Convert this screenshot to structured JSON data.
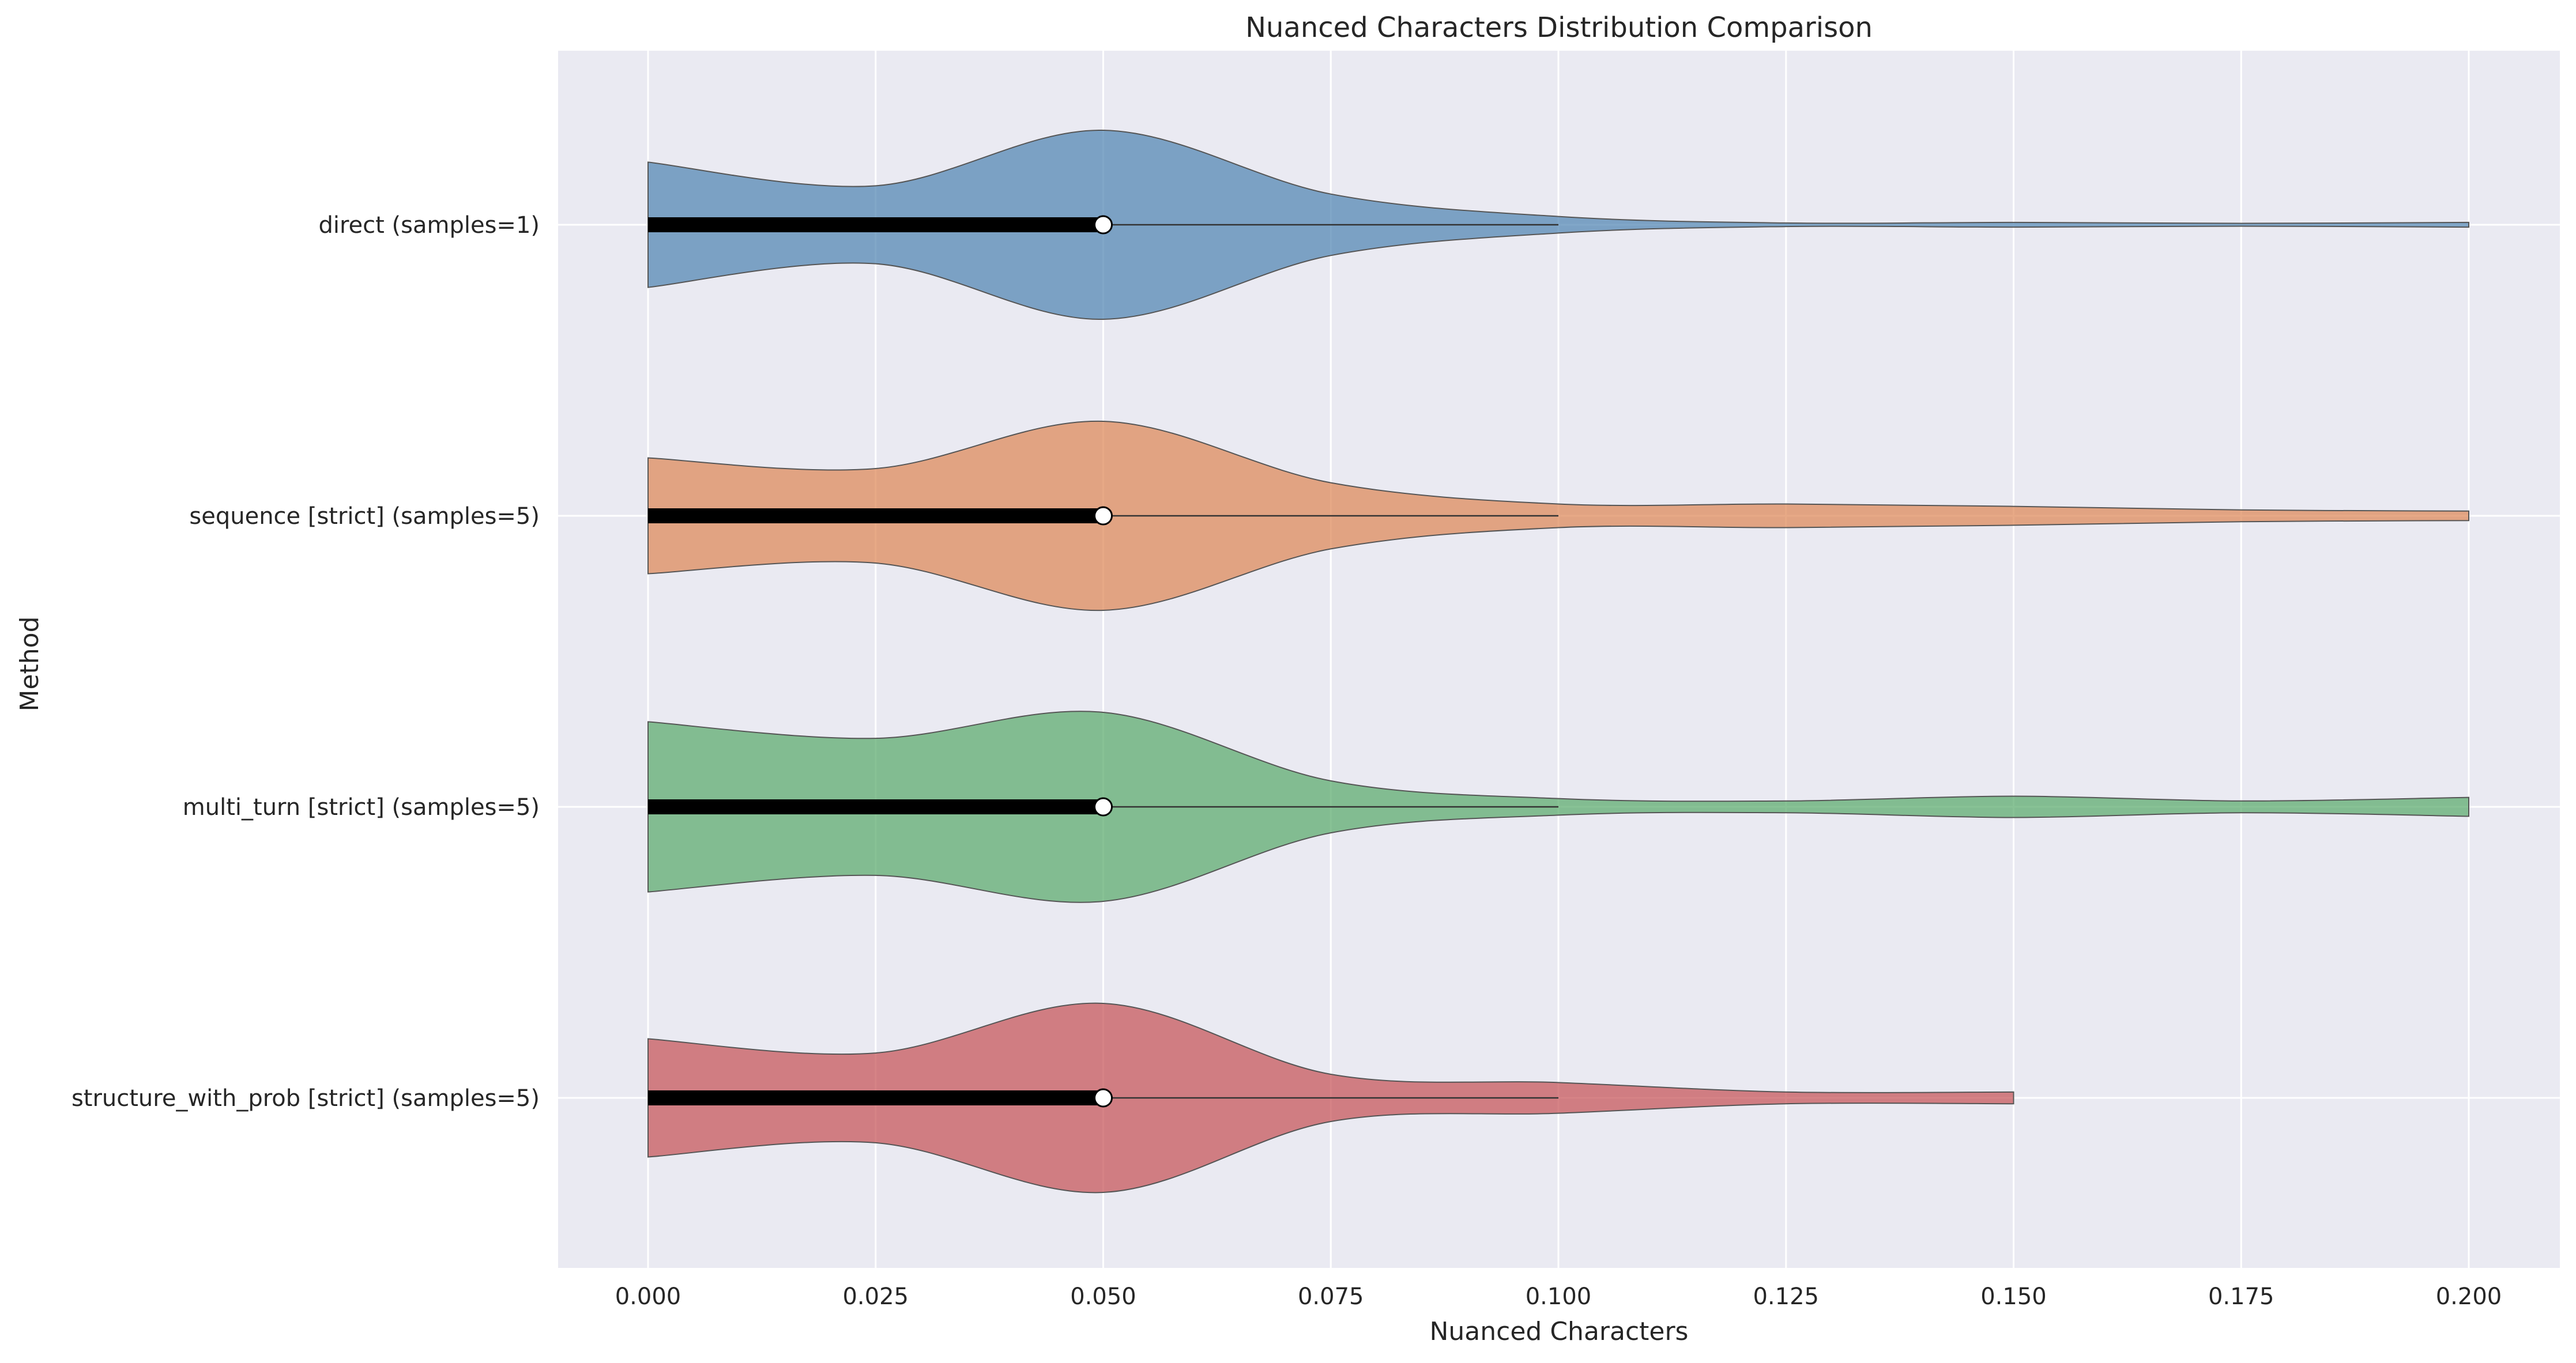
{
  "chart_data": {
    "type": "violin",
    "title": "Nuanced Characters Distribution Comparison",
    "xlabel": "Nuanced Characters",
    "ylabel": "Method",
    "xlim": [
      -0.01,
      0.21
    ],
    "xticks": [
      "0.000",
      "0.025",
      "0.050",
      "0.075",
      "0.100",
      "0.125",
      "0.150",
      "0.175",
      "0.200"
    ],
    "grid": true,
    "background": "#eaeaf2",
    "categories": [
      "direct (samples=1)",
      "sequence [strict] (samples=5)",
      "multi_turn [strict] (samples=5)",
      "structure_with_prob [strict] (samples=5)"
    ],
    "series": [
      {
        "color": "#4c81b0",
        "box": {
          "min": 0.0,
          "q1": 0.0,
          "median": 0.05,
          "q3": 0.05,
          "whisker_high": 0.1
        },
        "density": [
          [
            0.0,
            0.53
          ],
          [
            0.025,
            0.33
          ],
          [
            0.05,
            0.8
          ],
          [
            0.075,
            0.26
          ],
          [
            0.1,
            0.07
          ],
          [
            0.125,
            0.015
          ],
          [
            0.15,
            0.02
          ],
          [
            0.175,
            0.012
          ],
          [
            0.2,
            0.02
          ]
        ]
      },
      {
        "color": "#dd8452",
        "box": {
          "min": 0.0,
          "q1": 0.0,
          "median": 0.05,
          "q3": 0.05,
          "whisker_high": 0.1
        },
        "density": [
          [
            0.0,
            0.49
          ],
          [
            0.025,
            0.4
          ],
          [
            0.05,
            0.8
          ],
          [
            0.075,
            0.28
          ],
          [
            0.1,
            0.1
          ],
          [
            0.125,
            0.1
          ],
          [
            0.15,
            0.08
          ],
          [
            0.175,
            0.05
          ],
          [
            0.2,
            0.04
          ]
        ]
      },
      {
        "color": "#55a868",
        "box": {
          "min": 0.0,
          "q1": 0.0,
          "median": 0.05,
          "q3": 0.05,
          "whisker_high": 0.1
        },
        "density": [
          [
            0.0,
            0.72
          ],
          [
            0.025,
            0.58
          ],
          [
            0.05,
            0.8
          ],
          [
            0.075,
            0.22
          ],
          [
            0.1,
            0.07
          ],
          [
            0.125,
            0.05
          ],
          [
            0.15,
            0.09
          ],
          [
            0.175,
            0.05
          ],
          [
            0.2,
            0.08
          ]
        ]
      },
      {
        "color": "#c44e52",
        "box": {
          "min": 0.0,
          "q1": 0.0,
          "median": 0.05,
          "q3": 0.05,
          "whisker_high": 0.1
        },
        "density": [
          [
            0.0,
            0.5
          ],
          [
            0.025,
            0.38
          ],
          [
            0.05,
            0.8
          ],
          [
            0.075,
            0.2
          ],
          [
            0.1,
            0.13
          ],
          [
            0.125,
            0.05
          ],
          [
            0.15,
            0.05
          ]
        ]
      }
    ]
  }
}
